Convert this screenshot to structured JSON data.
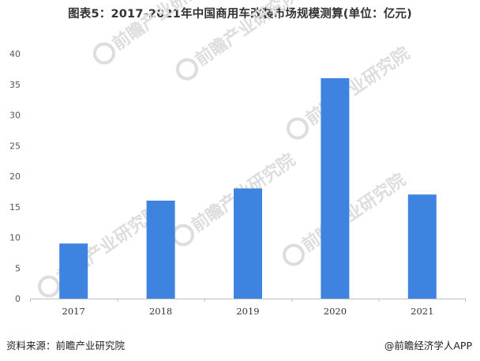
{
  "title": "图表5：2017-2021年中国商用车改装市场规模测算(单位：亿元)",
  "source": "资料来源：前瞻产业研究院",
  "credit": "@前瞻经济学人APP",
  "watermark": "前瞻产业研究院",
  "colors": {
    "bar": "#3f83e1",
    "axis": "#bfbfbf",
    "tick_text": "#555555",
    "watermark": "#dddddd"
  },
  "chart_data": {
    "type": "bar",
    "categories": [
      "2017",
      "2018",
      "2019",
      "2020",
      "2021"
    ],
    "values": [
      9,
      16,
      18,
      36,
      17
    ],
    "yticks": [
      0,
      5,
      10,
      15,
      20,
      25,
      30,
      35,
      40
    ],
    "ylim": [
      0,
      40
    ],
    "grid": false,
    "xlabel": "",
    "ylabel": ""
  }
}
